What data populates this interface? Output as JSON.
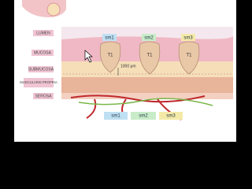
{
  "layers": [
    "LUMEN",
    "MUCOSA",
    "SUBMUCOSA",
    "MUSCULARIS PROPRIA",
    "SEROSA"
  ],
  "tumors": [
    {
      "label": "sm1",
      "stage": "T1"
    },
    {
      "label": "sm2",
      "stage": "T1"
    },
    {
      "label": "sm3",
      "stage": "T1"
    }
  ],
  "scale": "1000 μm",
  "legend": [
    "sm1",
    "sm2",
    "sm3"
  ]
}
